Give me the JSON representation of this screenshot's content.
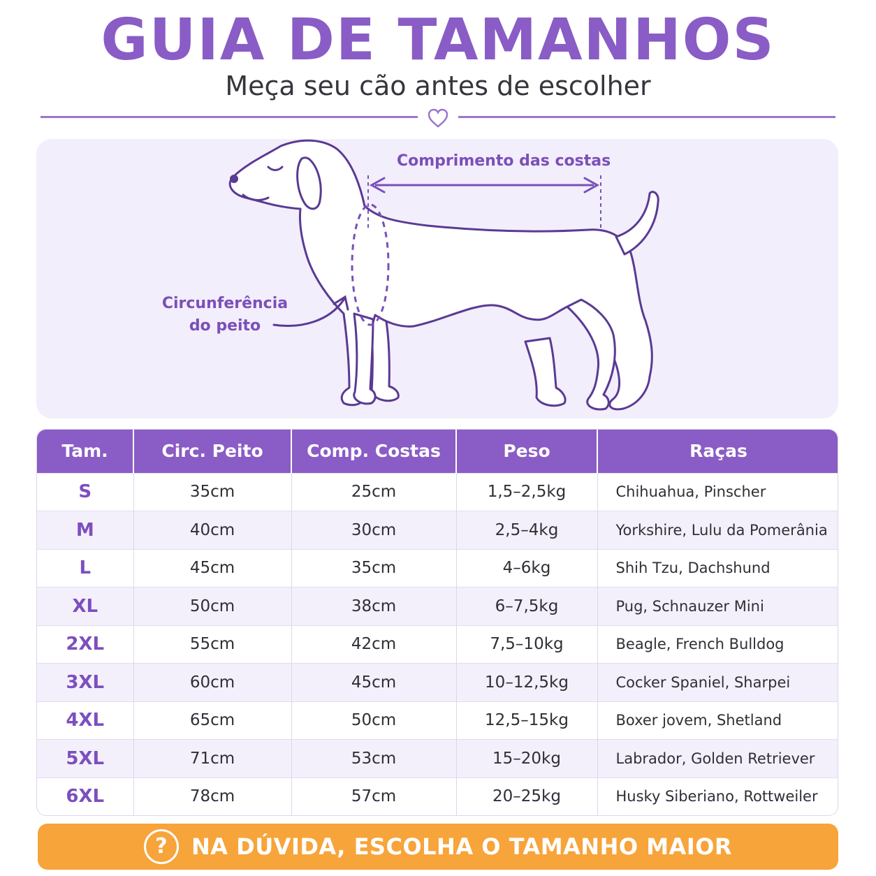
{
  "header": {
    "title": "GUIA DE TAMANHOS",
    "subtitle": "Meça seu cão antes de escolher"
  },
  "illustration": {
    "back_length_label": "Comprimento das costas",
    "chest_label_line1": "Circunferência",
    "chest_label_line2": "do peito"
  },
  "table": {
    "headers": [
      "Tam.",
      "Circ. Peito",
      "Comp. Costas",
      "Peso",
      "Raças"
    ],
    "rows": [
      [
        "S",
        "35cm",
        "25cm",
        "1,5–2,5kg",
        "Chihuahua, Pinscher"
      ],
      [
        "M",
        "40cm",
        "30cm",
        "2,5–4kg",
        "Yorkshire, Lulu da Pomerânia"
      ],
      [
        "L",
        "45cm",
        "35cm",
        "4–6kg",
        "Shih Tzu, Dachshund"
      ],
      [
        "XL",
        "50cm",
        "38cm",
        "6–7,5kg",
        "Pug, Schnauzer Mini"
      ],
      [
        "2XL",
        "55cm",
        "42cm",
        "7,5–10kg",
        "Beagle, French Bulldog"
      ],
      [
        "3XL",
        "60cm",
        "45cm",
        "10–12,5kg",
        "Cocker Spaniel, Sharpei"
      ],
      [
        "4XL",
        "65cm",
        "50cm",
        "12,5–15kg",
        "Boxer jovem, Shetland"
      ],
      [
        "5XL",
        "71cm",
        "53cm",
        "15–20kg",
        "Labrador, Golden Retriever"
      ],
      [
        "6XL",
        "78cm",
        "57cm",
        "20–25kg",
        "Husky Siberiano, Rottweiler"
      ]
    ]
  },
  "banner": {
    "icon": "question-circle-icon",
    "glyph": "?",
    "text": "NA DÚVIDA, ESCOLHA O TAMANHO MAIOR"
  },
  "colors": {
    "purple": "#8a5cc6",
    "orange": "#f7a43a",
    "light_lavender": "#f2eefb"
  }
}
